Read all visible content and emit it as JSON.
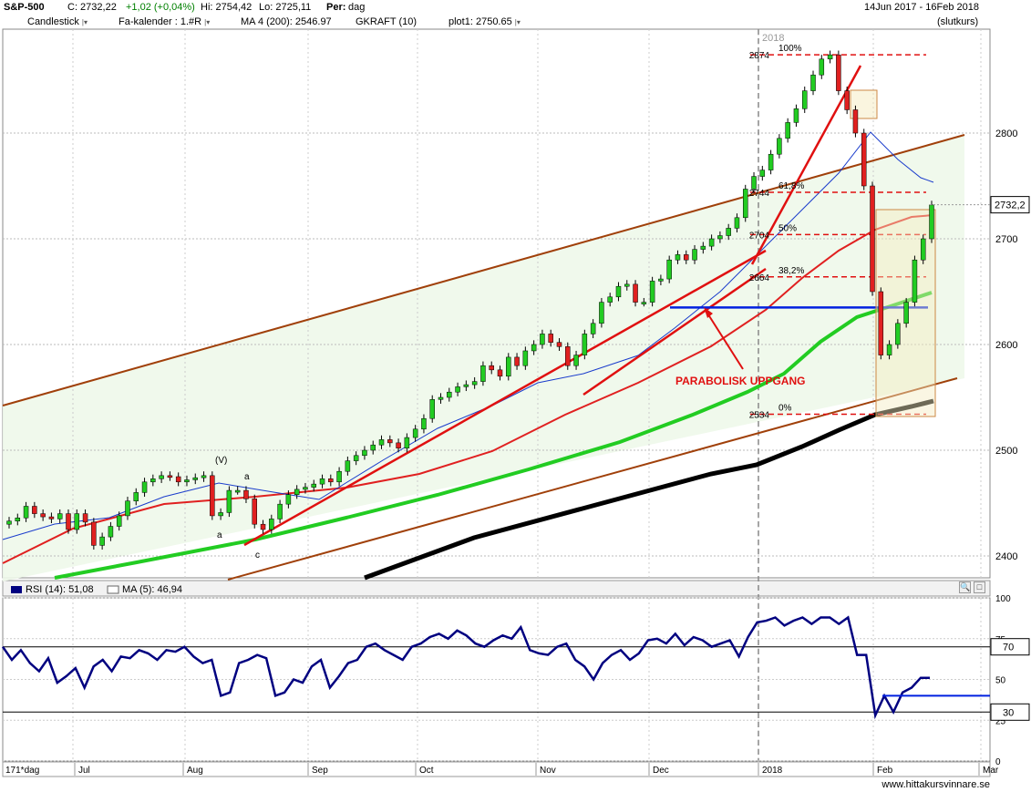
{
  "header": {
    "symbol": "S&P-500",
    "close": "C: 2732,22",
    "change": "+1,02 (+0,04%)",
    "high": "Hi: 2754,42",
    "low": "Lo: 2725,11",
    "period_label": "Per:",
    "period_value": "dag",
    "date_range": "14Jun 2017 - 16Feb 2018",
    "price_mode": "(slutkurs)"
  },
  "legend": [
    {
      "label": "Candlestick",
      "color": "#22cc22"
    },
    {
      "label": "Fa-kalender : 1.#R",
      "color": "#1e6b4a"
    },
    {
      "label": "MA 4 (200): 2546.97",
      "color": "#000000"
    },
    {
      "label": "GKRAFT (10)",
      "color": ""
    },
    {
      "label": "plot1: 2750.65",
      "color": "#0000ff"
    }
  ],
  "rsi_legend": {
    "rsi": "RSI (14): 51,08",
    "ma": "MA (5): 46,94",
    "rsi_color": "#000080"
  },
  "annotations": {
    "year_marker": "2018",
    "parabolic": "PARABOLISK UPPGANG",
    "wave_v": "(V)",
    "wave_a1": "a",
    "wave_a2": "a",
    "wave_c": "c"
  },
  "current_price_box": "2732,2",
  "rsi_level_boxes": [
    "70",
    "30"
  ],
  "x_labels": [
    "171*dag",
    "Jul",
    "Aug",
    "Sep",
    "Oct",
    "Nov",
    "Dec",
    "2018",
    "Feb",
    "Mar"
  ],
  "watermark": "www.hittakursvinnare.se",
  "chart_data": {
    "type": "candlestick",
    "y_ticks": [
      2400,
      2500,
      2600,
      2700,
      2800
    ],
    "ylim": [
      2385,
      2900
    ],
    "fib_levels": [
      {
        "label": "100%",
        "price": 2874
      },
      {
        "label": "61,8%",
        "price": 2744
      },
      {
        "label": "50%",
        "price": 2704
      },
      {
        "label": "38,2%",
        "price": 2664
      },
      {
        "label": "0%",
        "price": 2534
      }
    ],
    "fib_price_labels": [
      "2874",
      "2744",
      "2704",
      "2664",
      "2534"
    ],
    "horizontal_support": 2635,
    "rsi_ticks": [
      0,
      25,
      50,
      75,
      100
    ],
    "rsi_levels": [
      70,
      30
    ],
    "rsi_values": [
      70,
      62,
      68,
      60,
      55,
      63,
      48,
      52,
      57,
      45,
      58,
      62,
      55,
      64,
      63,
      68,
      66,
      62,
      68,
      67,
      70,
      64,
      60,
      62,
      40,
      42,
      60,
      62,
      65,
      63,
      40,
      42,
      50,
      48,
      58,
      62,
      45,
      52,
      60,
      62,
      70,
      72,
      68,
      65,
      62,
      70,
      72,
      76,
      78,
      75,
      80,
      77,
      72,
      70,
      74,
      77,
      75,
      82,
      68,
      66,
      65,
      70,
      72,
      62,
      58,
      50,
      60,
      65,
      68,
      62,
      66,
      74,
      75,
      72,
      78,
      71,
      76,
      74,
      70,
      72,
      74,
      64,
      76,
      85,
      86,
      88,
      83,
      86,
      88,
      84,
      88,
      88,
      84,
      88,
      65,
      65,
      28,
      40,
      30,
      42,
      45,
      51,
      51
    ],
    "price_closes": [
      2433,
      2436,
      2447,
      2440,
      2437,
      2435,
      2440,
      2425,
      2440,
      2432,
      2410,
      2418,
      2428,
      2438,
      2452,
      2460,
      2470,
      2473,
      2476,
      2475,
      2470,
      2472,
      2474,
      2476,
      2438,
      2441,
      2462,
      2462,
      2454,
      2430,
      2425,
      2435,
      2449,
      2458,
      2463,
      2465,
      2468,
      2473,
      2470,
      2480,
      2490,
      2495,
      2500,
      2505,
      2510,
      2507,
      2502,
      2512,
      2520,
      2530,
      2548,
      2550,
      2555,
      2560,
      2562,
      2565,
      2580,
      2576,
      2570,
      2588,
      2580,
      2594,
      2600,
      2610,
      2602,
      2598,
      2580,
      2590,
      2610,
      2620,
      2640,
      2645,
      2655,
      2657,
      2640,
      2640,
      2660,
      2662,
      2680,
      2685,
      2680,
      2690,
      2693,
      2700,
      2703,
      2710,
      2720,
      2747,
      2759,
      2765,
      2780,
      2795,
      2810,
      2823,
      2840,
      2855,
      2870,
      2874,
      2840,
      2822,
      2800,
      2750,
      2650,
      2590,
      2600,
      2620,
      2640,
      2680,
      2700,
      2732
    ]
  }
}
